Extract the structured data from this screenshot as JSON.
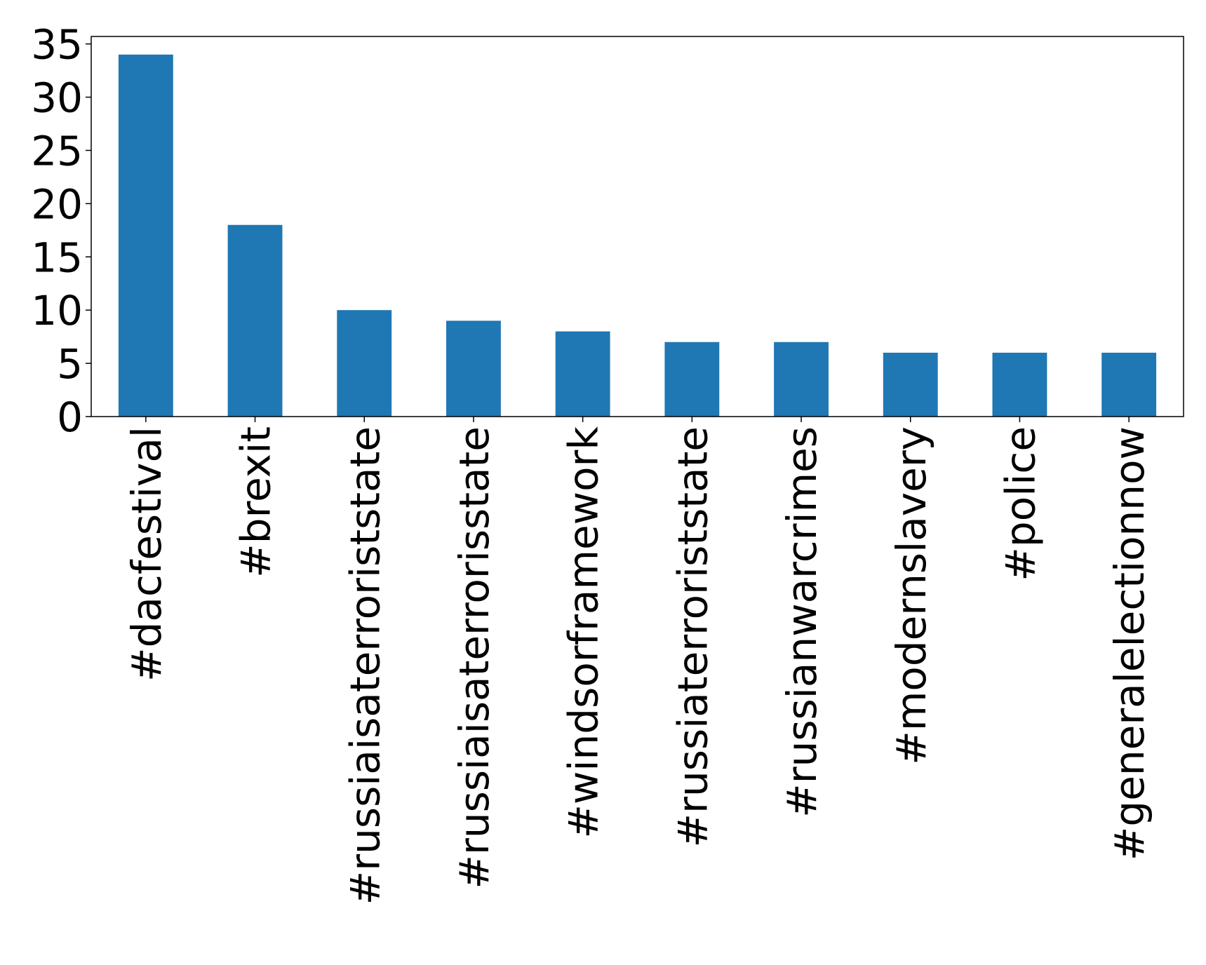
{
  "chart_data": {
    "type": "bar",
    "categories": [
      "#dacfestival",
      "#brexit",
      "#russiaisaterroriststate",
      "#russiaisaterrorisstate",
      "#windsorframework",
      "#russiaterroriststate",
      "#russianwarcrimes",
      "#modernslavery",
      "#police",
      "#generalelectionnow"
    ],
    "values": [
      34,
      18,
      10,
      9,
      8,
      7,
      7,
      6,
      6,
      6
    ],
    "color": "#1f77b4",
    "ylim": [
      0,
      35.7
    ],
    "yticks": [
      0,
      5,
      10,
      15,
      20,
      25,
      30,
      35
    ],
    "grid": false
  }
}
